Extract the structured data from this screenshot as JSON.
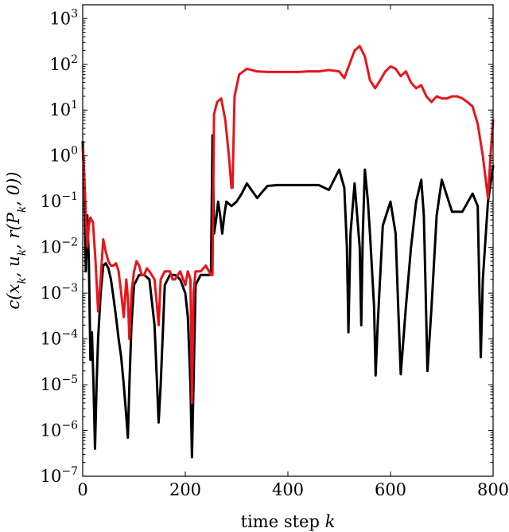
{
  "chart_data": {
    "type": "line",
    "title": "",
    "xlabel": "time step k",
    "ylabel": "c(x_k, u_k, r(P_k, 0))",
    "xlim": [
      0,
      800
    ],
    "ylim": [
      1e-07,
      2000
    ],
    "yscale": "log",
    "grid": false,
    "x_ticks": [
      "0",
      "200",
      "400",
      "600",
      "800"
    ],
    "y_tick_exponents": [
      "-7",
      "-6",
      "-5",
      "-4",
      "-3",
      "-2",
      "-1",
      "0",
      "1",
      "2",
      "3"
    ],
    "series": [
      {
        "color": "#000000",
        "x": [
          0,
          3,
          6,
          9,
          12,
          15,
          18,
          21,
          24,
          27,
          30,
          35,
          40,
          45,
          50,
          55,
          60,
          65,
          70,
          75,
          80,
          85,
          88,
          91,
          95,
          100,
          110,
          120,
          130,
          140,
          145,
          148,
          152,
          160,
          170,
          180,
          190,
          200,
          205,
          210,
          213,
          216,
          220,
          230,
          240,
          250,
          253,
          256,
          260,
          264,
          268,
          272,
          276,
          280,
          290,
          300,
          310,
          320,
          340,
          360,
          380,
          400,
          420,
          440,
          460,
          480,
          500,
          510,
          515,
          518,
          522,
          530,
          540,
          543,
          546,
          550,
          556,
          560,
          568,
          571,
          575,
          585,
          600,
          610,
          615,
          620,
          630,
          640,
          650,
          660,
          665,
          668,
          672,
          680,
          690,
          700,
          720,
          740,
          760,
          770,
          776,
          780,
          790,
          800
        ],
        "y": [
          2.0,
          0.3,
          0.003,
          0.05,
          0.005,
          3.5e-05,
          0.00014,
          1e-05,
          4e-07,
          1e-05,
          0.0001,
          0.001,
          0.004,
          0.0045,
          0.0035,
          0.002,
          0.0008,
          0.0003,
          0.0001,
          4e-05,
          1e-05,
          2e-06,
          7e-07,
          1e-05,
          0.0002,
          0.0015,
          0.0025,
          0.0025,
          0.002,
          0.0002,
          1e-05,
          1.5e-06,
          1e-05,
          0.0015,
          0.0025,
          0.0025,
          0.002,
          0.001,
          0.0003,
          1e-05,
          2.6e-07,
          1e-05,
          0.0015,
          0.0025,
          0.0025,
          0.0025,
          2.8,
          0.02,
          0.04,
          0.1,
          0.05,
          0.02,
          0.05,
          0.1,
          0.08,
          0.1,
          0.15,
          0.25,
          0.12,
          0.22,
          0.23,
          0.23,
          0.23,
          0.23,
          0.23,
          0.18,
          0.5,
          0.2,
          0.01,
          0.00014,
          0.02,
          0.25,
          0.01,
          0.0002,
          0.02,
          0.5,
          0.1,
          0.02,
          0.0005,
          1.6e-05,
          0.0002,
          0.03,
          0.1,
          0.02,
          0.0005,
          1.7e-05,
          0.0005,
          0.01,
          0.1,
          0.3,
          0.05,
          0.002,
          2e-05,
          0.0005,
          0.05,
          0.3,
          0.06,
          0.06,
          0.15,
          0.08,
          4e-05,
          0.002,
          0.1,
          0.6
        ]
      },
      {
        "color": "#e8141b",
        "x": [
          0,
          3,
          6,
          9,
          12,
          15,
          20,
          25,
          30,
          35,
          40,
          45,
          50,
          55,
          60,
          65,
          70,
          75,
          80,
          85,
          88,
          91,
          95,
          100,
          105,
          110,
          115,
          120,
          125,
          130,
          140,
          145,
          148,
          152,
          160,
          170,
          175,
          180,
          190,
          200,
          205,
          210,
          213,
          216,
          220,
          230,
          240,
          250,
          253,
          256,
          258,
          262,
          270,
          278,
          285,
          290,
          292,
          296,
          305,
          320,
          340,
          360,
          380,
          400,
          420,
          440,
          460,
          480,
          500,
          510,
          520,
          530,
          540,
          550,
          560,
          570,
          580,
          590,
          600,
          610,
          620,
          630,
          640,
          650,
          660,
          670,
          680,
          690,
          700,
          710,
          720,
          730,
          740,
          750,
          760,
          770,
          780,
          790,
          795,
          800
        ],
        "y": [
          1.5,
          0.4,
          0.05,
          0.01,
          0.03,
          0.045,
          0.035,
          0.005,
          0.0004,
          0.002,
          0.015,
          0.008,
          0.005,
          0.004,
          0.004,
          0.0045,
          0.003,
          0.001,
          0.0003,
          0.002,
          0.0008,
          0.0001,
          0.001,
          0.003,
          0.005,
          0.004,
          0.0025,
          0.0025,
          0.0035,
          0.003,
          0.002,
          0.0005,
          0.0002,
          0.002,
          0.003,
          0.003,
          0.002,
          0.002,
          0.003,
          0.0015,
          0.003,
          0.002,
          4e-06,
          0.001,
          0.003,
          0.003,
          0.004,
          0.0025,
          0.0025,
          8.0,
          10.0,
          15.0,
          18.0,
          6.0,
          1.0,
          0.2,
          0.2,
          20.0,
          60.0,
          80.0,
          70.0,
          68.0,
          68.0,
          68.0,
          68.0,
          70.0,
          70.0,
          75.0,
          70.0,
          50.0,
          100.0,
          200.0,
          250.0,
          150.0,
          45.0,
          30.0,
          45.0,
          70.0,
          90.0,
          80.0,
          55.0,
          70.0,
          40.0,
          30.0,
          35.0,
          20.0,
          15.0,
          20.0,
          18.0,
          18.0,
          20.0,
          20.0,
          18.0,
          15.0,
          12.0,
          5.0,
          1.0,
          0.12,
          1.0,
          6.0
        ]
      }
    ]
  }
}
